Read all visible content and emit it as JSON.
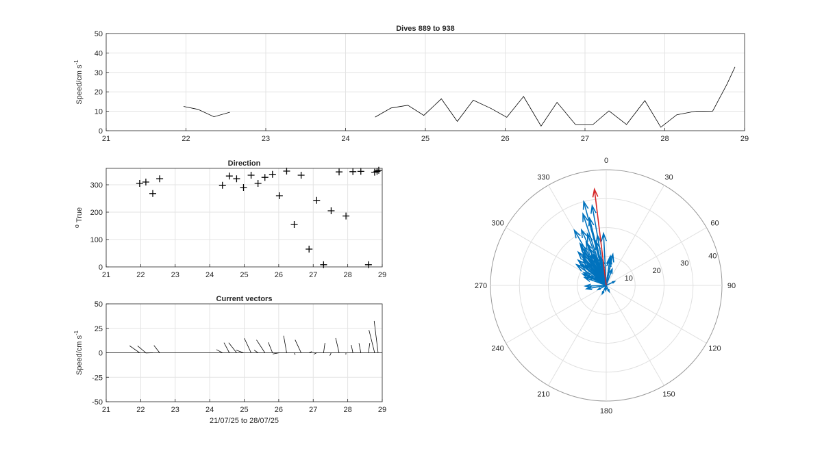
{
  "chart_data": [
    {
      "type": "line",
      "title": "Dives 889 to 938",
      "xlabel": "",
      "ylabel": "Speed/cm s",
      "ylabel_exponent": "-1",
      "xlim": [
        21,
        29
      ],
      "ylim": [
        0,
        50
      ],
      "xticks": [
        "21",
        "22",
        "23",
        "24",
        "25",
        "26",
        "27",
        "28",
        "29"
      ],
      "yticks": [
        "0",
        "10",
        "20",
        "30",
        "40",
        "50"
      ],
      "grid": true,
      "series": [
        {
          "x": [
            21.97,
            22.15,
            22.35,
            22.55
          ],
          "y": [
            12.5,
            11,
            7.2,
            9.5
          ]
        },
        {
          "x": [
            24.37,
            24.57,
            24.78,
            24.98,
            25.2,
            25.4,
            25.6,
            25.82,
            26.02,
            26.23,
            26.45,
            26.65,
            26.88,
            27.1,
            27.3,
            27.52,
            27.75,
            27.95,
            28.15,
            28.38,
            28.6,
            28.78,
            28.88
          ],
          "y": [
            7,
            11.7,
            13.1,
            7.9,
            16.4,
            4.8,
            15.7,
            11.5,
            6.9,
            17.6,
            2.4,
            14.6,
            3.2,
            3.2,
            10.2,
            3.2,
            15.5,
            1.8,
            8.2,
            10,
            10.1,
            24,
            32.8
          ]
        }
      ]
    },
    {
      "type": "scatter",
      "title": "Direction",
      "xlabel": "",
      "ylabel": "True",
      "ylabel_prefix": "o",
      "xlim": [
        21,
        29
      ],
      "ylim": [
        0,
        360
      ],
      "xticks": [
        "21",
        "22",
        "23",
        "24",
        "25",
        "26",
        "27",
        "28",
        "29"
      ],
      "yticks": [
        "0",
        "100",
        "200",
        "300"
      ],
      "grid": true,
      "marker": "+",
      "x": [
        21.97,
        22.15,
        22.35,
        22.55,
        24.37,
        24.57,
        24.78,
        24.98,
        25.2,
        25.4,
        25.6,
        25.82,
        26.02,
        26.23,
        26.45,
        26.65,
        26.88,
        27.1,
        27.3,
        27.52,
        27.75,
        27.95,
        28.15,
        28.38,
        28.6,
        28.78,
        28.85,
        28.9
      ],
      "y": [
        305,
        310,
        268,
        322,
        298,
        332,
        322,
        290,
        335,
        305,
        327,
        338,
        260,
        350,
        155,
        335,
        65,
        243,
        8,
        205,
        347,
        186,
        348,
        349,
        8,
        346,
        349,
        353
      ]
    },
    {
      "type": "quiver",
      "title": "Current vectors",
      "xlabel": "21/07/25 to 28/07/25",
      "ylabel": "Speed/cm s",
      "ylabel_exponent": "-1",
      "xlim": [
        21,
        29
      ],
      "ylim": [
        -50,
        50
      ],
      "xticks": [
        "21",
        "22",
        "23",
        "24",
        "25",
        "26",
        "27",
        "28",
        "29"
      ],
      "yticks": [
        "-50",
        "-25",
        "0",
        "25",
        "50"
      ],
      "grid": true,
      "x": [
        21.97,
        22.15,
        22.35,
        22.55,
        24.37,
        24.57,
        24.78,
        24.98,
        25.2,
        25.4,
        25.6,
        25.82,
        26.02,
        26.23,
        26.45,
        26.65,
        26.88,
        27.1,
        27.3,
        27.52,
        27.75,
        27.95,
        28.15,
        28.38,
        28.6,
        28.78,
        28.88
      ],
      "speed": [
        12.5,
        11,
        7.2,
        9.5,
        7,
        11.7,
        13.1,
        7.9,
        16.4,
        4.8,
        15.7,
        11.5,
        6.9,
        17.6,
        2.4,
        14.6,
        3.2,
        3.2,
        10.2,
        3.2,
        15.5,
        1.8,
        8.2,
        10,
        10.1,
        24,
        32.8
      ],
      "direction": [
        305,
        310,
        268,
        322,
        298,
        332,
        322,
        290,
        335,
        305,
        327,
        338,
        260,
        350,
        155,
        335,
        65,
        243,
        8,
        205,
        347,
        186,
        348,
        349,
        8,
        346,
        353
      ]
    },
    {
      "type": "polar",
      "title": "",
      "theta_zero": "top",
      "theta_direction": "clockwise",
      "theta_ticks": [
        "0",
        "30",
        "60",
        "90",
        "120",
        "150",
        "180",
        "210",
        "240",
        "270",
        "300",
        "330"
      ],
      "r_ticks": [
        "10",
        "20",
        "30",
        "40"
      ],
      "rlim": [
        0,
        40
      ],
      "series": [
        {
          "name": "",
          "color": "#0072bd",
          "direction": [
            305,
            310,
            268,
            322,
            298,
            332,
            322,
            290,
            335,
            305,
            327,
            338,
            260,
            350,
            155,
            335,
            65,
            243,
            8,
            205,
            347,
            186,
            348,
            349,
            8,
            346,
            325,
            318,
            340,
            315,
            330,
            312,
            336,
            342,
            300,
            328,
            345,
            320,
            335,
            310,
            296,
            12,
            20,
            8,
            350,
            357
          ],
          "speed": [
            12.5,
            11,
            7.2,
            9.5,
            7,
            11.7,
            13.1,
            7.9,
            16.4,
            4.8,
            15.7,
            11.5,
            6.9,
            17.6,
            2.4,
            14.6,
            3.2,
            3.2,
            10.2,
            3.2,
            15.5,
            1.8,
            8.2,
            10,
            10.1,
            24,
            14,
            12,
            19,
            10,
            22,
            13,
            21,
            26,
            9,
            17,
            30,
            15,
            12,
            11,
            9,
            11,
            6,
            9,
            28,
            18
          ]
        },
        {
          "name": "",
          "color": "#d62728",
          "direction": [
            353
          ],
          "speed": [
            33.5
          ]
        }
      ]
    }
  ]
}
